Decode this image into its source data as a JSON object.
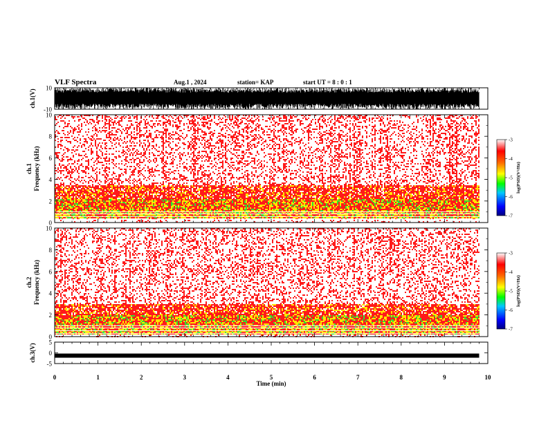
{
  "header": {
    "title": "VLF Spectra",
    "date": "Aug.1  , 2024",
    "station": "station= KAP",
    "start": "start  UT  =   8  : 0  : 1"
  },
  "chart_data": [
    {
      "type": "line",
      "panel": "ch1-waveform",
      "ylabel": "ch.1(V)",
      "ylim": [
        -10,
        10
      ],
      "ytick_labels": [
        "10",
        "-10"
      ],
      "xlim": [
        0,
        10
      ],
      "description_values": {
        "amplitude_min": -10,
        "amplitude_max": 10,
        "data_end_min": 9.8
      },
      "series": [
        {
          "color": "#000000"
        }
      ]
    },
    {
      "type": "heatmap",
      "panel": "ch1-spectrogram",
      "ylabel": "ch.1\nFrequency  (kHz)",
      "ylim": [
        0,
        10
      ],
      "ytick_labels": [
        "0",
        "2",
        "4",
        "6",
        "8",
        "10"
      ],
      "xlim": [
        0,
        10
      ],
      "data_end_min": 9.8,
      "bands_khz": {
        "intense_low": 1.2,
        "intense_high": 3.5,
        "peak_high": 2.3
      },
      "colorbar": {
        "label": "log(PSD)(V²/Hz)",
        "range": [
          -7,
          -3
        ],
        "tick_labels": [
          "-3",
          "-4",
          "-5",
          "-6",
          "-7"
        ]
      }
    },
    {
      "type": "heatmap",
      "panel": "ch2-spectrogram",
      "ylabel": "ch.2\nFrequency  (kHz)",
      "ylim": [
        0,
        10
      ],
      "ytick_labels": [
        "0",
        "2",
        "4",
        "6",
        "8",
        "10"
      ],
      "xlim": [
        0,
        10
      ],
      "data_end_min": 9.8,
      "bands_khz": {
        "intense_low": 0.9,
        "intense_high": 3.0,
        "peak_high": 2.1
      },
      "colorbar": {
        "label": "log(PSD)(V²/Hz)",
        "range": [
          -7,
          -3
        ],
        "tick_labels": [
          "-3",
          "-4",
          "-5",
          "-6",
          "-7"
        ]
      }
    },
    {
      "type": "line",
      "panel": "ch3-waveform",
      "ylabel": "ch.3(V)",
      "ylim": [
        -5,
        5
      ],
      "ytick_labels": [
        "5",
        "0",
        "-5"
      ],
      "xlim": [
        0,
        10
      ],
      "data_end_min": 9.8,
      "center_value": -1.3,
      "series": [
        {
          "color": "#000000"
        }
      ]
    }
  ],
  "x_axis": {
    "label": "Time  (min)",
    "tick_labels": [
      "0",
      "1",
      "2",
      "3",
      "4",
      "5",
      "6",
      "7",
      "8",
      "9",
      "10"
    ]
  },
  "colors": {
    "background_spectrogram": "#ffffff",
    "red": "#ff1a1a",
    "yellow": "#ffe600",
    "green": "#33dd33"
  }
}
